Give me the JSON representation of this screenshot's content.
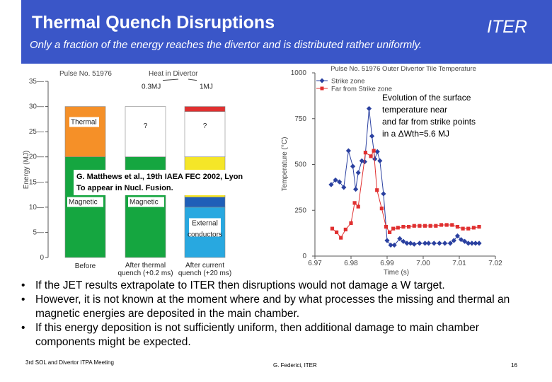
{
  "header": {
    "title": "Thermal Quench Disruptions",
    "brand": "ITER",
    "subtitle": "Only a fraction of the energy reaches the divertor and is distributed rather uniformly.",
    "background": "#3a56c8"
  },
  "chart_data": [
    {
      "type": "bar",
      "title": "Heat in Divertor",
      "pulse_label": "Pulse No. 51976",
      "ylabel": "Energy (MJ)",
      "ylim": [
        0,
        35
      ],
      "yticks": [
        0,
        5,
        10,
        15,
        20,
        25,
        30,
        35
      ],
      "categories": [
        "Before",
        "After thermal quench (+0.2 ms)",
        "After current quench (+20 ms)"
      ],
      "top_labels": [
        "",
        "0.3MJ",
        "1MJ"
      ],
      "segments": [
        [
          {
            "label": "Magnetic",
            "from": 0,
            "to": 20,
            "color": "#15a640"
          },
          {
            "label": "Thermal",
            "from": 20,
            "to": 30,
            "color": "#f59028"
          }
        ],
        [
          {
            "label": "Magnetic",
            "from": 0,
            "to": 20,
            "color": "#15a640"
          },
          {
            "label": "?",
            "from": 20,
            "to": 30,
            "color": "#ffffff"
          }
        ],
        [
          {
            "label": "External conductors",
            "from": 0,
            "to": 10,
            "color": "#28a8e0"
          },
          {
            "label": "",
            "from": 10,
            "to": 12,
            "color": "#1f5fb8"
          },
          {
            "label": "",
            "from": 12,
            "to": 20,
            "color": "#f5e628"
          },
          {
            "label": "?",
            "from": 20,
            "to": 29,
            "color": "#ffffff"
          },
          {
            "label": "",
            "from": 29,
            "to": 30,
            "color": "#e03030"
          }
        ]
      ]
    },
    {
      "type": "line",
      "title": "Pulse No. 51976 Outer Divertor Tile Temperature",
      "xlabel": "Time (s)",
      "ylabel": "Temperature (°C)",
      "xlim": [
        6.97,
        7.02
      ],
      "ylim": [
        0,
        1000
      ],
      "xticks": [
        "6.97",
        "6.98",
        "6.99",
        "7.00",
        "7.01",
        "7.02"
      ],
      "yticks": [
        "0",
        "250",
        "500",
        "750",
        "1000"
      ],
      "legend_position": "top-left",
      "series": [
        {
          "name": "Strike zone",
          "color": "#2a40a0",
          "marker": "diamond",
          "points": [
            [
              6.9745,
              390
            ],
            [
              6.9757,
              415
            ],
            [
              6.9768,
              405
            ],
            [
              6.978,
              375
            ],
            [
              6.9793,
              575
            ],
            [
              6.9805,
              490
            ],
            [
              6.9813,
              365
            ],
            [
              6.982,
              455
            ],
            [
              6.983,
              520
            ],
            [
              6.9838,
              515
            ],
            [
              6.985,
              805
            ],
            [
              6.9858,
              655
            ],
            [
              6.9866,
              530
            ],
            [
              6.9873,
              570
            ],
            [
              6.988,
              520
            ],
            [
              6.989,
              340
            ],
            [
              6.99,
              85
            ],
            [
              6.991,
              60
            ],
            [
              6.992,
              60
            ],
            [
              6.9935,
              95
            ],
            [
              6.9945,
              80
            ],
            [
              6.9955,
              70
            ],
            [
              6.9965,
              70
            ],
            [
              6.9975,
              65
            ],
            [
              6.999,
              70
            ],
            [
              7.0005,
              70
            ],
            [
              7.0015,
              70
            ],
            [
              7.003,
              70
            ],
            [
              7.0045,
              70
            ],
            [
              7.006,
              70
            ],
            [
              7.0075,
              70
            ],
            [
              7.0085,
              85
            ],
            [
              7.0095,
              110
            ],
            [
              7.0105,
              90
            ],
            [
              7.0115,
              80
            ],
            [
              7.0125,
              70
            ],
            [
              7.0135,
              70
            ],
            [
              7.0145,
              70
            ],
            [
              7.0155,
              70
            ]
          ]
        },
        {
          "name": "Far from Strike zone",
          "color": "#e03030",
          "marker": "square",
          "points": [
            [
              6.9748,
              150
            ],
            [
              6.976,
              130
            ],
            [
              6.9772,
              100
            ],
            [
              6.9785,
              145
            ],
            [
              6.98,
              180
            ],
            [
              6.981,
              290
            ],
            [
              6.982,
              270
            ],
            [
              6.984,
              565
            ],
            [
              6.9855,
              545
            ],
            [
              6.9863,
              575
            ],
            [
              6.9872,
              360
            ],
            [
              6.9885,
              260
            ],
            [
              6.9897,
              160
            ],
            [
              6.9907,
              130
            ],
            [
              6.9917,
              150
            ],
            [
              6.993,
              155
            ],
            [
              6.9945,
              160
            ],
            [
              6.996,
              160
            ],
            [
              6.9975,
              165
            ],
            [
              6.999,
              165
            ],
            [
              7.0005,
              165
            ],
            [
              7.002,
              165
            ],
            [
              7.0035,
              165
            ],
            [
              7.005,
              170
            ],
            [
              7.0065,
              170
            ],
            [
              7.008,
              170
            ],
            [
              7.0095,
              160
            ],
            [
              7.011,
              150
            ],
            [
              7.0125,
              150
            ],
            [
              7.014,
              155
            ],
            [
              7.0155,
              160
            ]
          ]
        }
      ]
    }
  ],
  "annotation": {
    "lines": [
      "Evolution of the surface",
      "temperature near",
      "and far from strike points",
      "in a ΔWth=5.6 MJ"
    ]
  },
  "reference": {
    "line1": "G. Matthews et al., 19th IAEA FEC 2002, Lyon",
    "line2": "To appear in Nucl. Fusion."
  },
  "bullets": [
    "If the JET results extrapolate to ITER then disruptions would not damage a W target.",
    "However, it is not known at the moment where and by what processes the missing and thermal an magnetic energies are deposited in the main chamber.",
    "If this energy deposition is not sufficiently uniform, then additional damage to main chamber components might be expected."
  ],
  "footer": {
    "left": "3rd SOL and Divertor ITPA Meeting",
    "center": "G. Federici, ITER",
    "page": "16"
  }
}
